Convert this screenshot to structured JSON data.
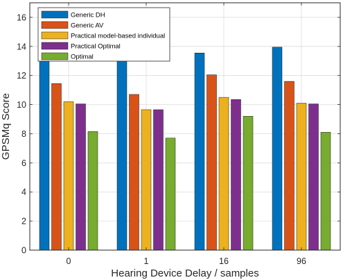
{
  "chart_data": {
    "type": "bar",
    "xlabel": "Hearing Device Delay / samples",
    "ylabel": "GPSMq Score",
    "categories": [
      "0",
      "1",
      "16",
      "96"
    ],
    "ylim": [
      0,
      17
    ],
    "yticks": [
      0,
      2,
      4,
      6,
      8,
      10,
      12,
      14,
      16
    ],
    "grid": true,
    "legend_position": "top-left",
    "series": [
      {
        "name": "Generic DH",
        "color": "#0072BD",
        "values": [
          14.0,
          13.9,
          13.55,
          13.95
        ]
      },
      {
        "name": "Generic AV",
        "color": "#D95319",
        "values": [
          11.45,
          10.7,
          12.05,
          11.6
        ]
      },
      {
        "name": "Practical model-based individual",
        "color": "#EDB120",
        "values": [
          10.2,
          9.65,
          10.5,
          10.1
        ]
      },
      {
        "name": "Practical Optimal",
        "color": "#7E2F8E",
        "values": [
          10.05,
          9.65,
          10.35,
          10.05
        ]
      },
      {
        "name": "Optimal",
        "color": "#77AC30",
        "values": [
          8.15,
          7.7,
          9.2,
          8.1
        ]
      }
    ]
  }
}
